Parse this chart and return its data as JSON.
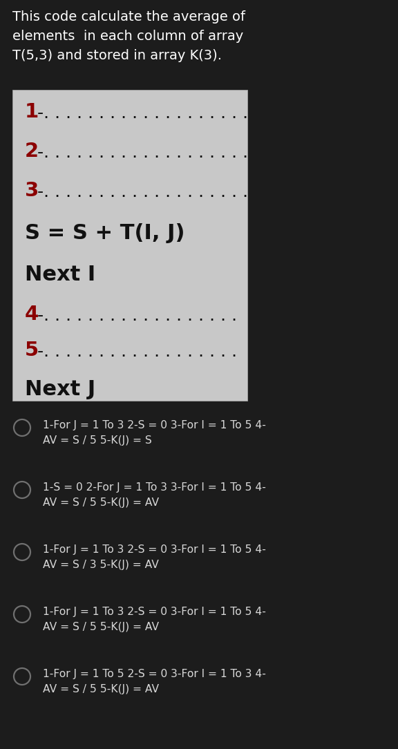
{
  "bg_color": "#1c1c1c",
  "header_text_lines": [
    "This code calculate the average of",
    "elements  in each column of array",
    "T(5,3) and stored in array K(3)."
  ],
  "header_color": "#ffffff",
  "box_bg": "#c8c8c8",
  "box_lines_top": [
    {
      "num": "1",
      "dots": "-. . . . . . . . . . . . . . . . . . ."
    },
    {
      "num": "2",
      "dots": "-. . . . . . . . . . . . . . . . . . ."
    },
    {
      "num": "3",
      "dots": "-. . . . . . . . . . . . . . . . . . ."
    }
  ],
  "box_middle_lines": [
    "S = S + T(I, J)",
    "Next I"
  ],
  "box_lines_bottom": [
    {
      "num": "4",
      "dots": "-. . . . . . . . . . . . . . . . . ."
    },
    {
      "num": "5",
      "dots": "-. . . . . . . . . . . . . . . . . ."
    }
  ],
  "box_last_line": "Next J",
  "num_color": "#8b0000",
  "text_color": "#111111",
  "options": [
    {
      "line1": "1-For J = 1 To 3 2-S = 0 3-For I = 1 To 5 4-",
      "line2": "AV = S / 5 5-K(J) = S"
    },
    {
      "line1": "1-S = 0 2-For J = 1 To 3 3-For I = 1 To 5 4-",
      "line2": "AV = S / 5 5-K(J) = AV"
    },
    {
      "line1": "1-For J = 1 To 3 2-S = 0 3-For I = 1 To 5 4-",
      "line2": "AV = S / 3 5-K(J) = AV"
    },
    {
      "line1": "1-For J = 1 To 3 2-S = 0 3-For I = 1 To 5 4-",
      "line2": "AV = S / 5 5-K(J) = AV"
    },
    {
      "line1": "1-For J = 1 To 5 2-S = 0 3-For I = 1 To 3 4-",
      "line2": "AV = S / 5 5-K(J) = AV"
    }
  ],
  "option_text_color": "#d8d8d8",
  "circle_color": "#707070",
  "fig_w": 5.76,
  "fig_h": 10.84,
  "dpi": 100
}
